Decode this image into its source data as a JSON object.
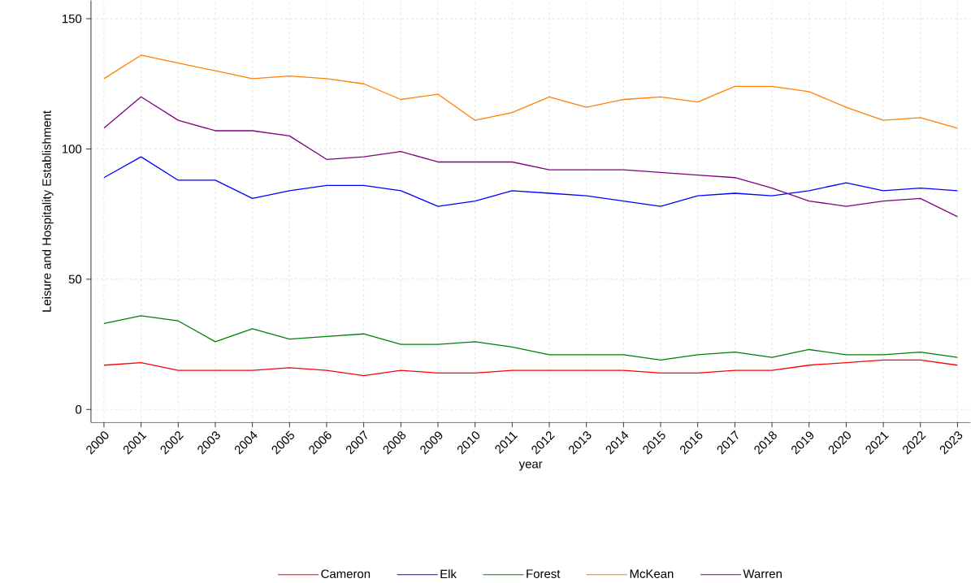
{
  "chart_data": {
    "type": "line",
    "xlabel": "year",
    "ylabel": "Leisure and Hospitality Establishment",
    "x": [
      2000,
      2001,
      2002,
      2003,
      2004,
      2005,
      2006,
      2007,
      2008,
      2009,
      2010,
      2011,
      2012,
      2013,
      2014,
      2015,
      2016,
      2017,
      2018,
      2019,
      2020,
      2021,
      2022,
      2023
    ],
    "xlim": [
      1999.65,
      2023.35
    ],
    "ylim": [
      -5,
      157
    ],
    "xticks": [
      2000,
      2001,
      2002,
      2003,
      2004,
      2005,
      2006,
      2007,
      2008,
      2009,
      2010,
      2011,
      2012,
      2013,
      2014,
      2015,
      2016,
      2017,
      2018,
      2019,
      2020,
      2021,
      2022,
      2023
    ],
    "yticks": [
      0,
      50,
      100,
      150
    ],
    "grid": true,
    "legend": "bottom",
    "series": [
      {
        "name": "Cameron",
        "color": "#ff0000",
        "values": [
          17,
          18,
          15,
          15,
          15,
          16,
          15,
          13,
          15,
          14,
          14,
          15,
          15,
          15,
          15,
          14,
          14,
          15,
          15,
          17,
          18,
          19,
          19,
          17
        ]
      },
      {
        "name": "Elk",
        "color": "#0000ff",
        "values": [
          89,
          97,
          88,
          88,
          81,
          84,
          86,
          86,
          84,
          78,
          80,
          84,
          83,
          82,
          80,
          78,
          82,
          83,
          82,
          84,
          87,
          84,
          85,
          84
        ]
      },
      {
        "name": "Forest",
        "color": "#008000",
        "values": [
          33,
          36,
          34,
          26,
          31,
          27,
          28,
          29,
          25,
          25,
          26,
          24,
          21,
          21,
          21,
          19,
          21,
          22,
          20,
          23,
          21,
          21,
          22,
          20
        ]
      },
      {
        "name": "McKean",
        "color": "#ff8000",
        "values": [
          127,
          136,
          133,
          130,
          127,
          128,
          127,
          125,
          119,
          121,
          111,
          114,
          120,
          116,
          119,
          120,
          118,
          124,
          124,
          122,
          116,
          111,
          112,
          108
        ]
      },
      {
        "name": "Warren",
        "color": "#800080",
        "values": [
          108,
          120,
          111,
          107,
          107,
          105,
          96,
          97,
          99,
          95,
          95,
          95,
          92,
          92,
          92,
          91,
          90,
          89,
          85,
          80,
          78,
          80,
          81,
          74
        ]
      }
    ]
  }
}
